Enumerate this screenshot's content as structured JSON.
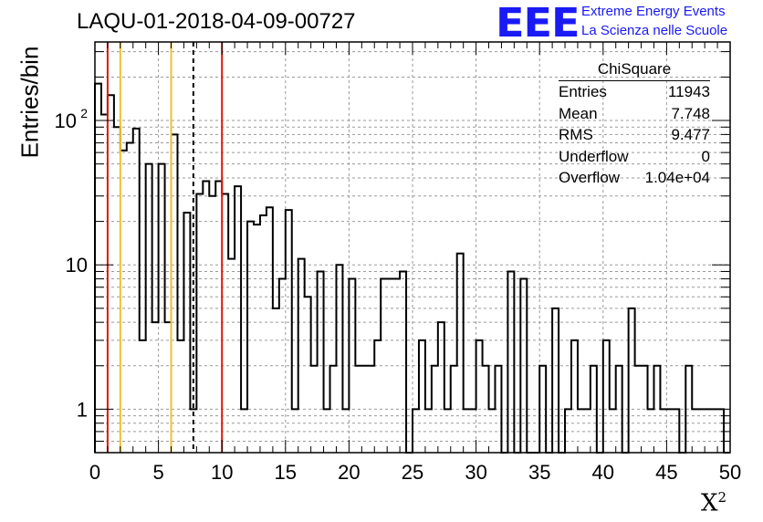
{
  "header": {
    "run_title": "LAQU-01-2018-04-09-00727",
    "logo_text": "EEE",
    "logo_line1": "Extreme Energy Events",
    "logo_line2": "La Scienza nelle Scuole"
  },
  "stats_box": {
    "title": "ChiSquare",
    "rows": [
      {
        "label": "Entries",
        "value": "11943"
      },
      {
        "label": "Mean",
        "value": "7.748"
      },
      {
        "label": "RMS",
        "value": "9.477"
      },
      {
        "label": "Underflow",
        "value": "0"
      },
      {
        "label": "Overflow",
        "value": "1.04e+04"
      }
    ]
  },
  "chart_data": {
    "type": "bar",
    "histogram": "step",
    "title": "LAQU-01-2018-04-09-00727",
    "xlabel": "X",
    "xlabel_superscript": "2",
    "ylabel": "Entries/bin",
    "xlim": [
      0,
      50
    ],
    "ylim": [
      0.5,
      350
    ],
    "y_scale": "log",
    "grid": true,
    "bin_width": 0.5,
    "x_ticks": [
      "0",
      "5",
      "10",
      "15",
      "20",
      "25",
      "30",
      "35",
      "40",
      "45",
      "50"
    ],
    "y_ticks": [
      {
        "value": 1,
        "label": "1"
      },
      {
        "value": 10,
        "label": "10"
      },
      {
        "value": 100,
        "label": "10",
        "exp": "2"
      }
    ],
    "values": [
      180,
      110,
      150,
      90,
      62,
      70,
      88,
      3,
      50,
      4,
      50,
      4,
      80,
      3,
      23,
      1,
      31,
      38,
      30,
      38,
      31,
      11,
      35,
      1,
      20,
      19,
      22,
      25,
      5,
      8,
      24,
      1,
      11,
      6,
      2,
      9,
      1,
      2,
      10,
      1,
      8,
      2,
      2,
      2,
      3,
      8,
      8,
      8,
      9,
      0,
      1,
      3,
      1,
      2,
      4,
      1,
      2,
      12,
      1,
      1,
      3,
      2,
      1,
      2,
      0,
      9,
      0,
      8,
      0,
      0,
      2,
      0,
      5,
      0,
      1,
      3,
      1,
      1,
      2,
      0,
      3,
      1,
      2,
      0,
      5,
      2,
      2,
      1,
      2,
      1,
      1,
      1,
      0,
      2,
      1,
      1,
      1,
      1,
      1,
      0
    ],
    "value_lines": [
      {
        "x": 1.0,
        "color": "#e3170a",
        "style": "solid"
      },
      {
        "x": 2.0,
        "color": "#f2c12e",
        "style": "solid"
      },
      {
        "x": 6.0,
        "color": "#f2c12e",
        "style": "solid"
      },
      {
        "x": 7.748,
        "color": "#000000",
        "style": "dashed"
      },
      {
        "x": 10.0,
        "color": "#e3170a",
        "style": "solid"
      }
    ],
    "colors": {
      "histogram": "#000000",
      "grid": "#9a9a9a"
    }
  }
}
